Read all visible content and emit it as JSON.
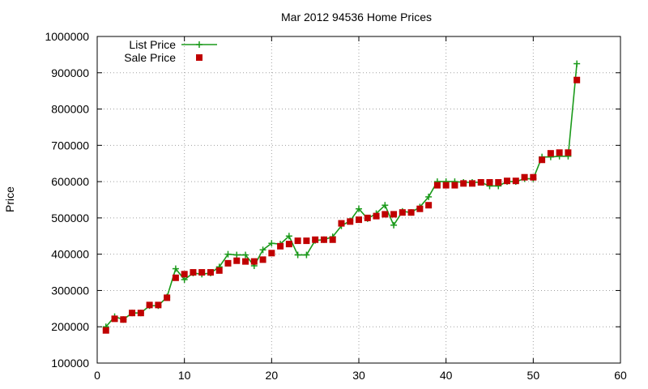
{
  "chart_data": {
    "type": "line",
    "title": "Mar 2012 94536 Home Prices",
    "xlabel": "",
    "ylabel": "Price",
    "xlim": [
      0,
      60
    ],
    "ylim": [
      100000,
      1000000
    ],
    "xticks": [
      0,
      10,
      20,
      30,
      40,
      50,
      60
    ],
    "yticks": [
      100000,
      200000,
      300000,
      400000,
      500000,
      600000,
      700000,
      800000,
      900000,
      1000000
    ],
    "grid": true,
    "legend_position": "top-left",
    "series": [
      {
        "name": "List Price",
        "color": "#1a9a1a",
        "marker": "plus",
        "line": true,
        "x": [
          1,
          2,
          3,
          4,
          5,
          6,
          7,
          8,
          9,
          10,
          11,
          12,
          13,
          14,
          15,
          16,
          17,
          18,
          19,
          20,
          21,
          22,
          23,
          24,
          25,
          26,
          27,
          28,
          29,
          30,
          31,
          32,
          33,
          34,
          35,
          36,
          37,
          38,
          39,
          40,
          41,
          42,
          43,
          44,
          45,
          46,
          47,
          48,
          49,
          50,
          51,
          52,
          53,
          54,
          55
        ],
        "y": [
          200000,
          228000,
          220000,
          238000,
          238000,
          258000,
          258000,
          282000,
          360000,
          330000,
          348000,
          345000,
          348000,
          365000,
          400000,
          398000,
          398000,
          368000,
          412000,
          430000,
          428000,
          450000,
          398000,
          398000,
          438000,
          440000,
          448000,
          478000,
          492000,
          525000,
          498000,
          512000,
          535000,
          480000,
          518000,
          515000,
          530000,
          558000,
          600000,
          600000,
          600000,
          598000,
          598000,
          598000,
          588000,
          588000,
          600000,
          600000,
          608000,
          608000,
          668000,
          668000,
          670000,
          670000,
          925000
        ]
      },
      {
        "name": "Sale Price",
        "color": "#c00000",
        "marker": "square",
        "line": false,
        "x": [
          1,
          2,
          3,
          4,
          5,
          6,
          7,
          8,
          9,
          10,
          11,
          12,
          13,
          14,
          15,
          16,
          17,
          18,
          19,
          20,
          21,
          22,
          23,
          24,
          25,
          26,
          27,
          28,
          29,
          30,
          31,
          32,
          33,
          34,
          35,
          36,
          37,
          38,
          39,
          40,
          41,
          42,
          43,
          44,
          45,
          46,
          47,
          48,
          49,
          50,
          51,
          52,
          53,
          54,
          55
        ],
        "y": [
          190000,
          222000,
          220000,
          238000,
          238000,
          260000,
          260000,
          280000,
          335000,
          345000,
          350000,
          350000,
          350000,
          355000,
          375000,
          382000,
          380000,
          380000,
          385000,
          403000,
          422000,
          428000,
          437000,
          437000,
          440000,
          440000,
          440000,
          485000,
          490000,
          495000,
          500000,
          505000,
          510000,
          510000,
          515000,
          515000,
          525000,
          535000,
          590000,
          590000,
          590000,
          595000,
          595000,
          598000,
          598000,
          598000,
          602000,
          602000,
          612000,
          612000,
          660000,
          678000,
          680000,
          680000,
          880000
        ]
      }
    ]
  }
}
